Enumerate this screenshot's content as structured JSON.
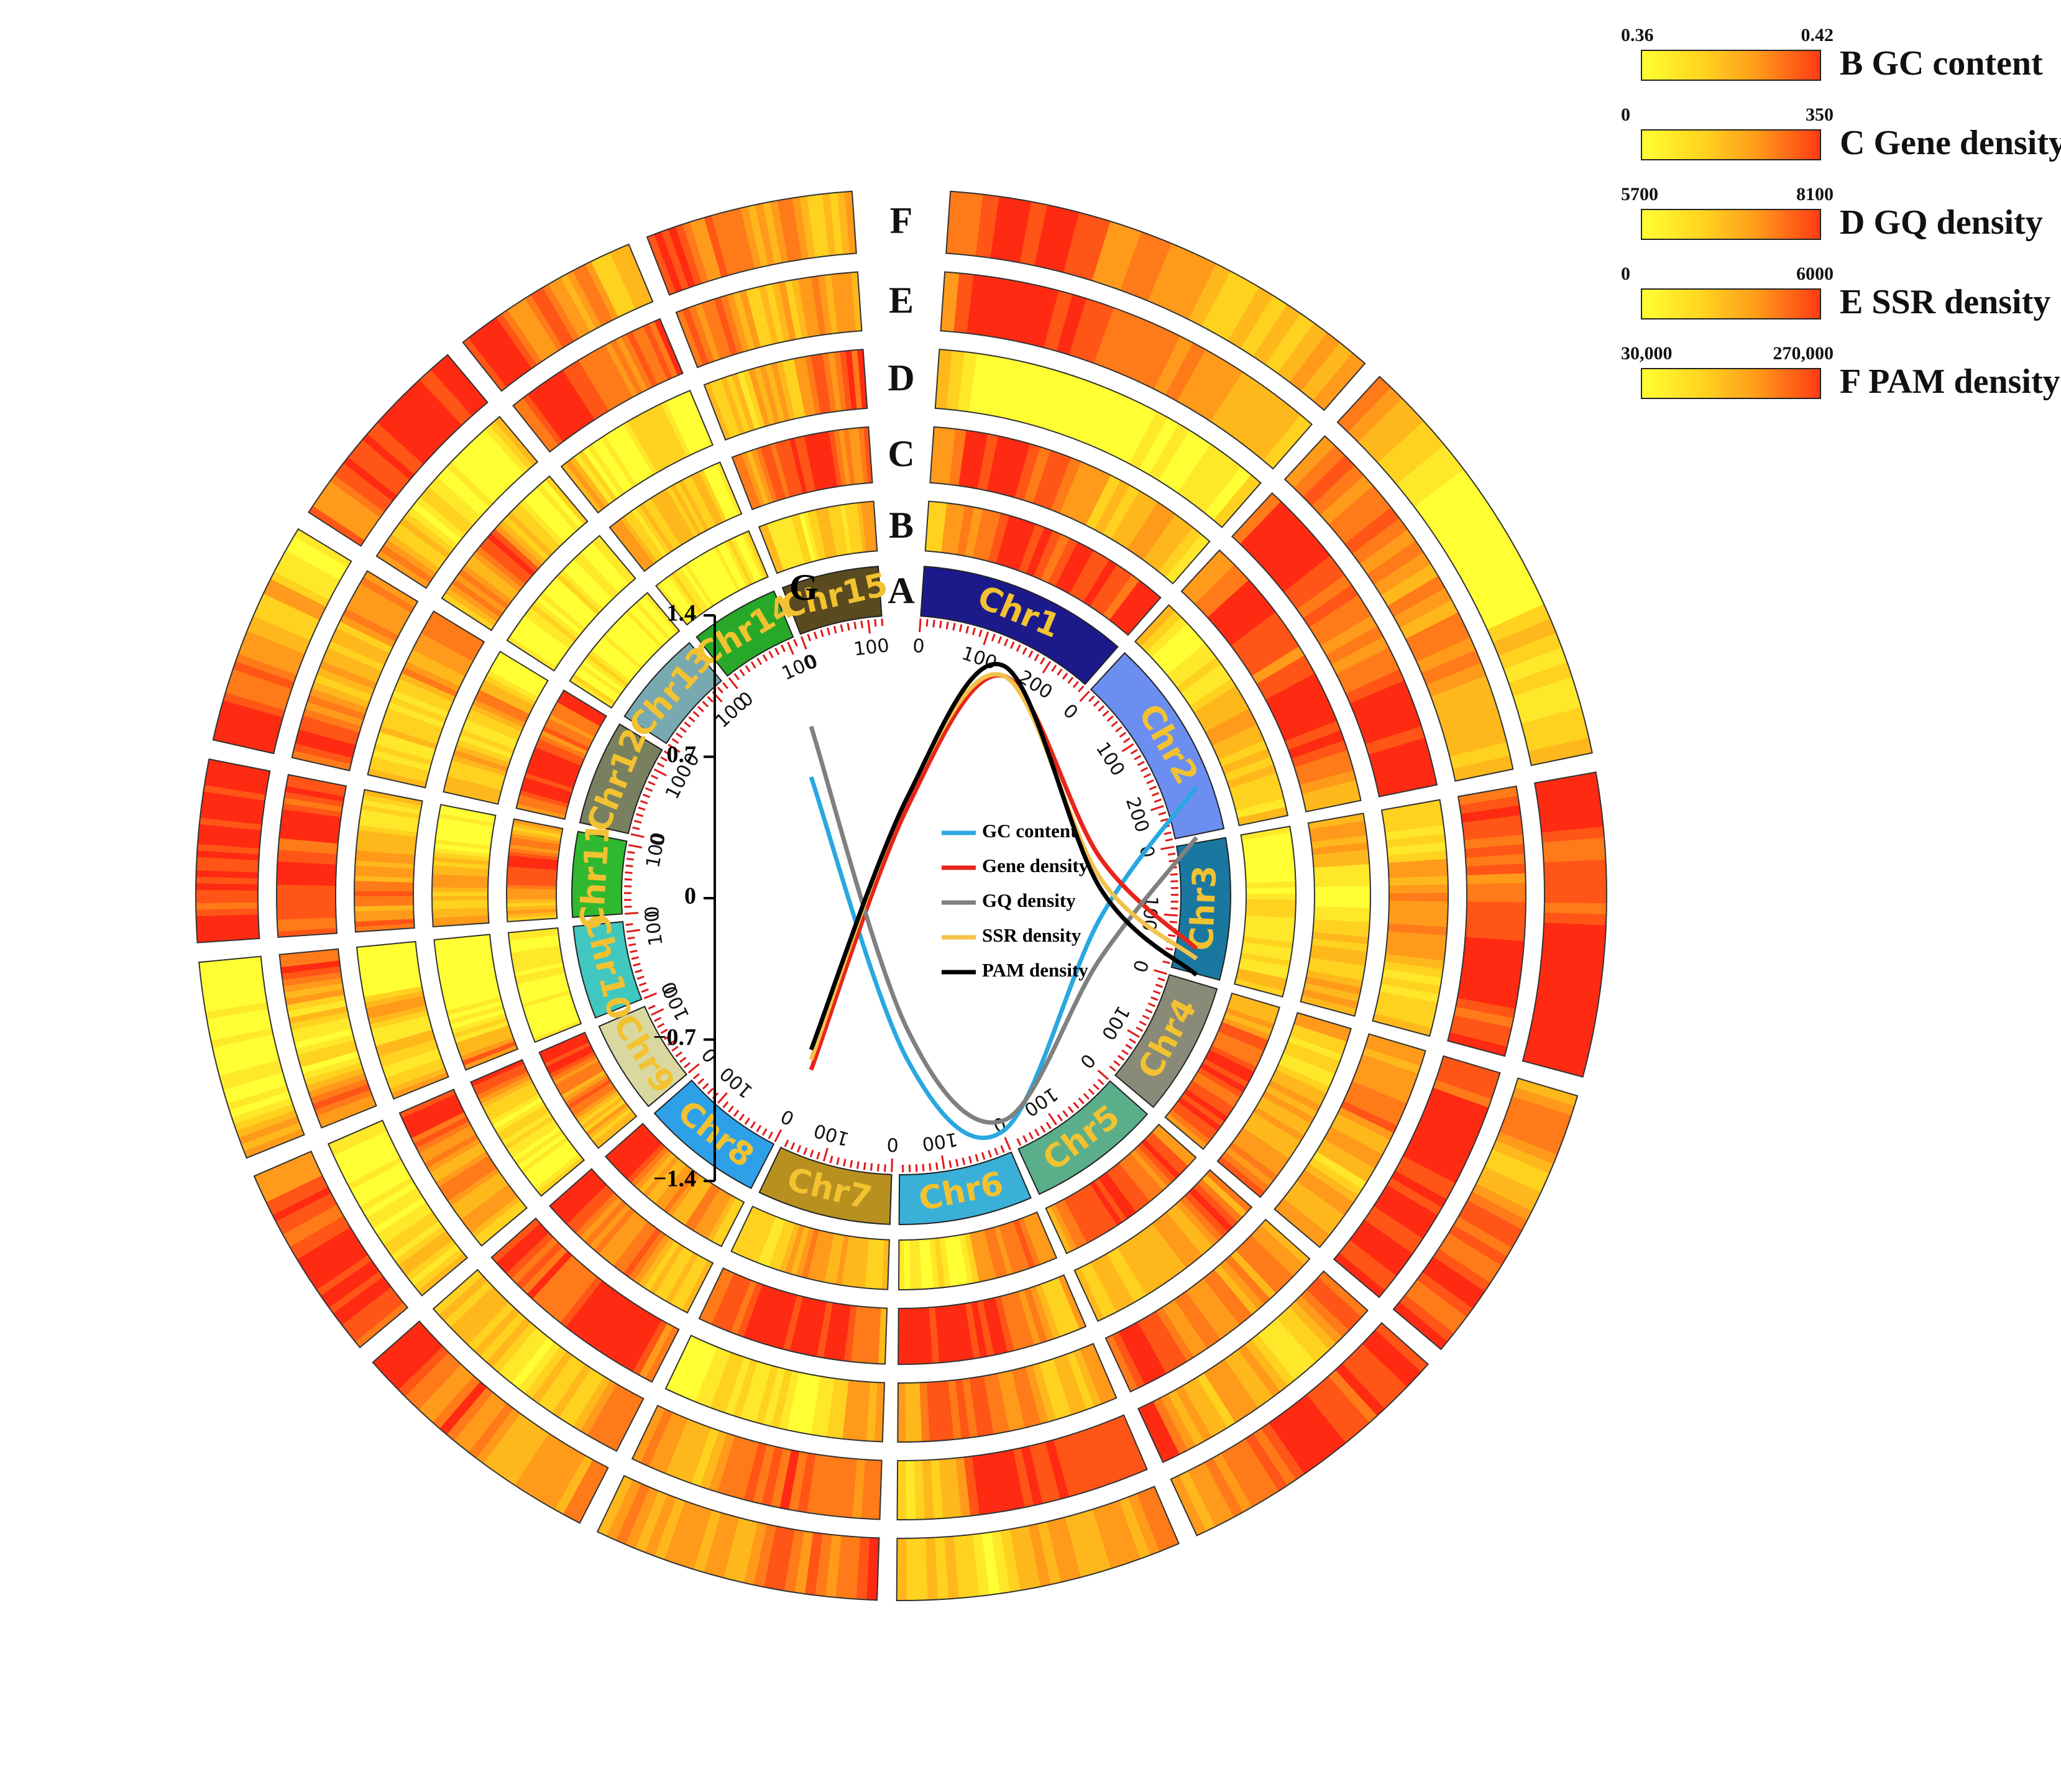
{
  "figure": {
    "track_letters": [
      "A",
      "B",
      "C",
      "D",
      "E",
      "F"
    ],
    "inner_plot_letter": "G",
    "colors": {
      "low": "#ffff33",
      "mid": "#ff9a1a",
      "high": "#ff2a12"
    }
  },
  "chromosomes": [
    {
      "name": "Chr1",
      "length": 260,
      "color": "#1c1a8a",
      "label_color": "#f2c230"
    },
    {
      "name": "Chr2",
      "length": 250,
      "color": "#6b8ef0",
      "label_color": "#f2c230"
    },
    {
      "name": "Chr3",
      "length": 175,
      "color": "#1a78a0",
      "label_color": "#f2c230"
    },
    {
      "name": "Chr4",
      "length": 165,
      "color": "#8a8a78",
      "label_color": "#f2c230"
    },
    {
      "name": "Chr5",
      "length": 165,
      "color": "#5aae8a",
      "label_color": "#f2c230"
    },
    {
      "name": "Chr6",
      "length": 165,
      "color": "#3ab0d8",
      "label_color": "#f2c230"
    },
    {
      "name": "Chr7",
      "length": 165,
      "color": "#b89020",
      "label_color": "#f2c230"
    },
    {
      "name": "Chr8",
      "length": 150,
      "color": "#2ea0e8",
      "label_color": "#f2c230"
    },
    {
      "name": "Chr9",
      "length": 115,
      "color": "#d8d8a0",
      "label_color": "#f2c230"
    },
    {
      "name": "Chr10",
      "length": 115,
      "color": "#40c8c0",
      "label_color": "#f2c230"
    },
    {
      "name": "Chr11",
      "length": 105,
      "color": "#30b830",
      "label_color": "#f2c230"
    },
    {
      "name": "Chr12",
      "length": 130,
      "color": "#788060",
      "label_color": "#f2c230"
    },
    {
      "name": "Chr13",
      "length": 120,
      "color": "#78a8b0",
      "label_color": "#f2c230"
    },
    {
      "name": "Chr14",
      "length": 110,
      "color": "#28a828",
      "label_color": "#f2c230"
    },
    {
      "name": "Chr15",
      "length": 120,
      "color": "#5a4a20",
      "label_color": "#f2c230"
    }
  ],
  "legend": [
    {
      "track": "B",
      "label": "GC content",
      "min": "0.36",
      "max": "0.42"
    },
    {
      "track": "C",
      "label": "Gene density",
      "min": "0",
      "max": "350"
    },
    {
      "track": "D",
      "label": "GQ density",
      "min": "5700",
      "max": "8100"
    },
    {
      "track": "E",
      "label": "SSR density",
      "min": "0",
      "max": "6000"
    },
    {
      "track": "F",
      "label": "PAM density",
      "min": "30,000",
      "max": "270,000"
    }
  ],
  "chart_data": {
    "type": "line",
    "ylim": [
      -1.4,
      1.4
    ],
    "yticks": [
      "1.4",
      "0.7",
      "0",
      "−0.7",
      "−1.4"
    ],
    "series": [
      {
        "name": "GC content",
        "color": "#29a8e0",
        "x": [
          0,
          0.25,
          0.5,
          0.75,
          1
        ],
        "values": [
          0.6,
          -0.8,
          -1.15,
          -0.1,
          0.55
        ]
      },
      {
        "name": "Gene density",
        "color": "#e8251a",
        "x": [
          0,
          0.25,
          0.5,
          0.75,
          1
        ],
        "values": [
          -0.85,
          0.45,
          1.1,
          0.2,
          -0.25
        ]
      },
      {
        "name": "GQ density",
        "color": "#808080",
        "x": [
          0,
          0.25,
          0.5,
          0.75,
          1
        ],
        "values": [
          0.85,
          -0.65,
          -1.1,
          -0.3,
          0.3
        ]
      },
      {
        "name": "SSR density",
        "color": "#f2c24a",
        "x": [
          0,
          0.25,
          0.5,
          0.75,
          1
        ],
        "values": [
          -0.8,
          0.5,
          1.1,
          0.1,
          -0.3
        ]
      },
      {
        "name": "PAM density",
        "color": "#000000",
        "x": [
          0,
          0.25,
          0.5,
          0.75,
          1
        ],
        "values": [
          -0.75,
          0.5,
          1.15,
          0.05,
          -0.38
        ]
      }
    ]
  }
}
